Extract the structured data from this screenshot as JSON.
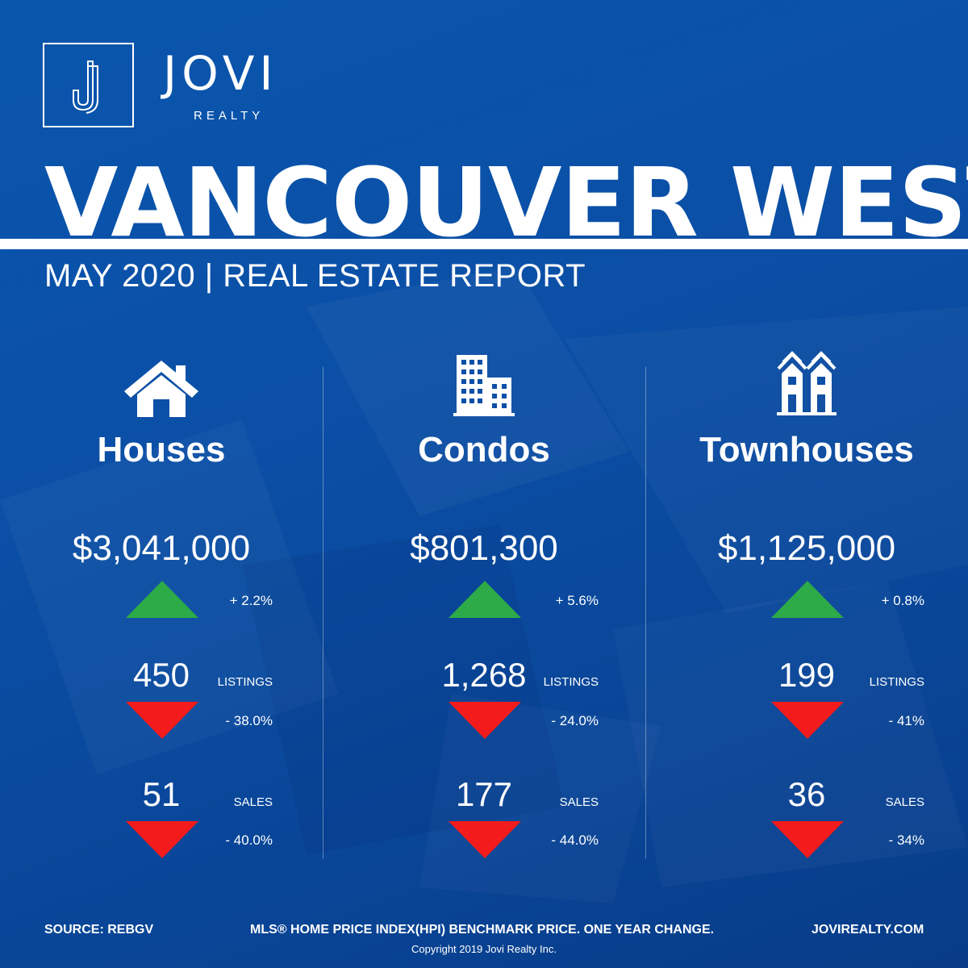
{
  "colors": {
    "background": "#0b4fa6",
    "up": "#2dab48",
    "down": "#f31b1b",
    "text": "#ffffff"
  },
  "brand": {
    "name": "JOVI",
    "sub": "REALTY",
    "logo_icon": "j-monogram-icon"
  },
  "headline": "VANCOUVER WEST",
  "subheadline": "MAY 2020 | REAL ESTATE REPORT",
  "columns": [
    {
      "icon": "house-icon",
      "title": "Houses",
      "price": "$3,041,000",
      "price_change": "+ 2.2%",
      "price_trend": "up",
      "listings": "450",
      "listings_label": "LISTINGS",
      "listings_change": "- 38.0%",
      "listings_trend": "down",
      "sales": "51",
      "sales_label": "SALES",
      "sales_change": "- 40.0%",
      "sales_trend": "down"
    },
    {
      "icon": "condo-building-icon",
      "title": "Condos",
      "price": "$801,300",
      "price_change": "+ 5.6%",
      "price_trend": "up",
      "listings": "1,268",
      "listings_label": "LISTINGS",
      "listings_change": "- 24.0%",
      "listings_trend": "down",
      "sales": "177",
      "sales_label": "SALES",
      "sales_change": "- 44.0%",
      "sales_trend": "down"
    },
    {
      "icon": "townhouse-icon",
      "title": "Townhouses",
      "price": "$1,125,000",
      "price_change": "+ 0.8%",
      "price_trend": "up",
      "listings": "199",
      "listings_label": "LISTINGS",
      "listings_change": "- 41%",
      "listings_trend": "down",
      "sales": "36",
      "sales_label": "SALES",
      "sales_change": "- 34%",
      "sales_trend": "down"
    }
  ],
  "footer": {
    "source": "SOURCE:  REBGV",
    "note": "MLS® HOME PRICE INDEX(HPI) BENCHMARK PRICE. ONE YEAR CHANGE.",
    "website": "JOVIREALTY.COM",
    "copyright": "Copyright 2019 Jovi Realty Inc."
  }
}
